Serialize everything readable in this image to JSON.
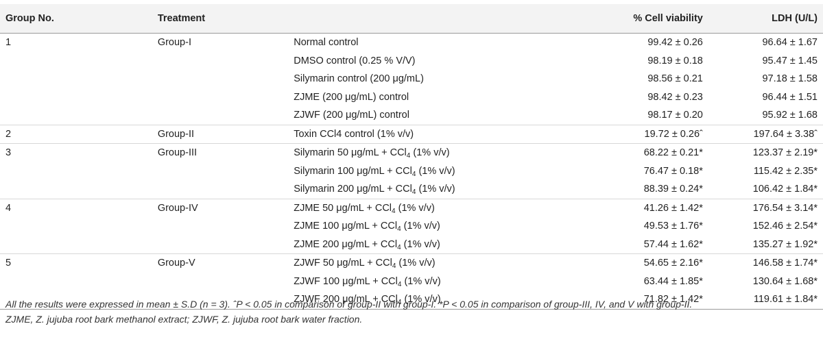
{
  "table": {
    "headers": {
      "group_no": "Group No.",
      "treatment": "Treatment",
      "cell_viability": "% Cell viability",
      "ldh": "LDH (U/L)"
    },
    "rows": [
      {
        "no": "1",
        "group": "Group-I",
        "treatment": "Normal control",
        "sub": "",
        "treatment_tail": "",
        "viability": "99.42 ± 0.26",
        "ldh": "96.64 ± 1.67"
      },
      {
        "no": "",
        "group": "",
        "treatment": "DMSO control (0.25 % V/V)",
        "sub": "",
        "treatment_tail": "",
        "viability": "98.19 ± 0.18",
        "ldh": "95.47 ± 1.45"
      },
      {
        "no": "",
        "group": "",
        "treatment": "Silymarin control (200 μg/mL)",
        "sub": "",
        "treatment_tail": "",
        "viability": "98.56 ± 0.21",
        "ldh": "97.18 ± 1.58"
      },
      {
        "no": "",
        "group": "",
        "treatment": "ZJME (200 μg/mL) control",
        "sub": "",
        "treatment_tail": "",
        "viability": "98.42 ± 0.23",
        "ldh": "96.44 ± 1.51"
      },
      {
        "no": "",
        "group": "",
        "treatment": "ZJWF (200 μg/mL) control",
        "sub": "",
        "treatment_tail": "",
        "viability": "98.17 ± 0.20",
        "ldh": "95.92 ± 1.68"
      },
      {
        "no": "2",
        "group": "Group-II",
        "treatment": "Toxin CCl4 control (1% v/v)",
        "sub": "",
        "treatment_tail": "",
        "viability": "19.72 ± 0.26ˆ",
        "ldh": "197.64 ± 3.38ˆ"
      },
      {
        "no": "3",
        "group": "Group-III",
        "treatment": "Silymarin 50 μg/mL + CCl",
        "sub": "4",
        "treatment_tail": " (1% v/v)",
        "viability": "68.22 ± 0.21*",
        "ldh": "123.37 ± 2.19*"
      },
      {
        "no": "",
        "group": "",
        "treatment": "Silymarin 100 μg/mL + CCl",
        "sub": "4",
        "treatment_tail": " (1% v/v)",
        "viability": "76.47 ± 0.18*",
        "ldh": "115.42 ± 2.35*"
      },
      {
        "no": "",
        "group": "",
        "treatment": "Silymarin 200 μg/mL + CCl",
        "sub": "4",
        "treatment_tail": " (1% v/v)",
        "viability": "88.39 ± 0.24*",
        "ldh": "106.42 ± 1.84*"
      },
      {
        "no": "4",
        "group": "Group-IV",
        "treatment": "ZJME 50 μg/mL + CCl",
        "sub": "4",
        "treatment_tail": " (1% v/v)",
        "viability": "41.26 ± 1.42*",
        "ldh": "176.54 ± 3.14*"
      },
      {
        "no": "",
        "group": "",
        "treatment": "ZJME 100 μg/mL + CCl",
        "sub": "4",
        "treatment_tail": " (1% v/v)",
        "viability": "49.53 ± 1.76*",
        "ldh": "152.46 ± 2.54*"
      },
      {
        "no": "",
        "group": "",
        "treatment": "ZJME 200 μg/mL + CCl",
        "sub": "4",
        "treatment_tail": " (1% v/v)",
        "viability": "57.44 ± 1.62*",
        "ldh": "135.27 ± 1.92*"
      },
      {
        "no": "5",
        "group": "Group-V",
        "treatment": "ZJWF 50 μg/mL + CCl",
        "sub": "4",
        "treatment_tail": " (1% v/v)",
        "viability": "54.65 ± 2.16*",
        "ldh": "146.58 ± 1.74*"
      },
      {
        "no": "",
        "group": "",
        "treatment": "ZJWF 100 μg/mL + CCl",
        "sub": "4",
        "treatment_tail": " (1% v/v)",
        "viability": "63.44 ± 1.85*",
        "ldh": "130.64 ± 1.68*"
      },
      {
        "no": "",
        "group": "",
        "treatment": "ZJWF 200 μg/mL + CCl",
        "sub": "4",
        "treatment_tail": " (1% v/v)",
        "viability": "71.82 ± 1.42*",
        "ldh": "119.61 ± 1.84*"
      }
    ]
  },
  "footnote": {
    "line1": "All the results were expressed in mean ± S.D (n = 3). ˆP < 0.05 in comparison of group-II with group-I. *P < 0.05 in comparison of group-III, IV, and V with group-II.",
    "line2": "ZJME, Z. jujuba root bark methanol extract; ZJWF, Z. jujuba root bark water fraction."
  }
}
